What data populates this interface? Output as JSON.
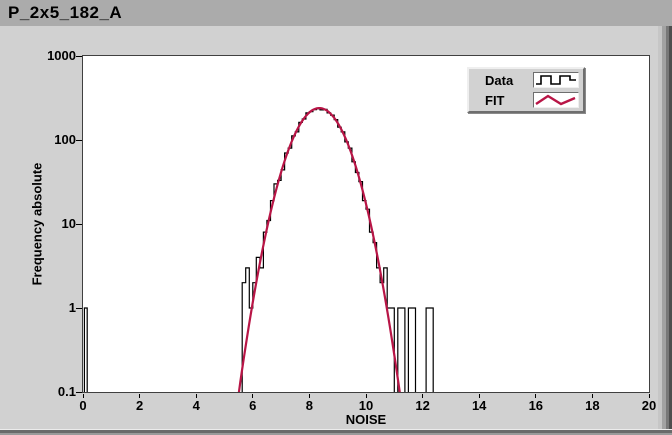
{
  "window": {
    "title": "P_2x5_182_A"
  },
  "colors": {
    "header_bg": "#ababab",
    "body_bg": "#d1d1d1",
    "plot_bg": "#ffffff",
    "plot_border": "#404040",
    "text": "#000000",
    "data": "#000000",
    "fit": "#b81546",
    "legend_face": "#d2d2d2"
  },
  "legend": {
    "items": [
      {
        "label": "Data",
        "glyph": "step-line",
        "color": "#000000"
      },
      {
        "label": "FIT",
        "glyph": "zigzag-line",
        "color": "#b81546"
      }
    ]
  },
  "chart_data": {
    "type": "bar",
    "subtype": "log-histogram-with-gaussian-fit",
    "title": "P_2x5_182_A",
    "xlabel": "NOISE",
    "ylabel": "Frequency absolute",
    "grid": false,
    "legend_position": "top-right",
    "x_axis": {
      "min": 0,
      "max": 20,
      "ticks": [
        0,
        2,
        4,
        6,
        8,
        10,
        12,
        14,
        16,
        18,
        20
      ]
    },
    "y_axis": {
      "scale": "log",
      "min": 0.1,
      "max": 1000,
      "ticks": [
        1000,
        100,
        10,
        1,
        0.1
      ],
      "tick_labels": [
        "1000",
        "100",
        "10",
        "1",
        "0.1"
      ]
    },
    "histogram": {
      "name": "Data",
      "bin_width": 0.125,
      "first_bin_start": 5.625,
      "counts": [
        2,
        3,
        1,
        2,
        4,
        3,
        8,
        11,
        19,
        30,
        33,
        44,
        70,
        80,
        112,
        125,
        162,
        178,
        210,
        218,
        230,
        235,
        228,
        232,
        210,
        198,
        175,
        142,
        125,
        95,
        80,
        55,
        41,
        32,
        19,
        15,
        8,
        6,
        3,
        2,
        3,
        1,
        1,
        0,
        1,
        1,
        0,
        1,
        1,
        0,
        0,
        0,
        1,
        1
      ],
      "outlier_bins": [
        {
          "start": 0.05,
          "end": 0.15,
          "count": 1
        }
      ]
    },
    "fit": {
      "name": "FIT",
      "model": "gaussian",
      "amplitude": 240,
      "mean": 8.35,
      "sigma": 0.72,
      "x_range": [
        5.5,
        11.22
      ]
    }
  }
}
